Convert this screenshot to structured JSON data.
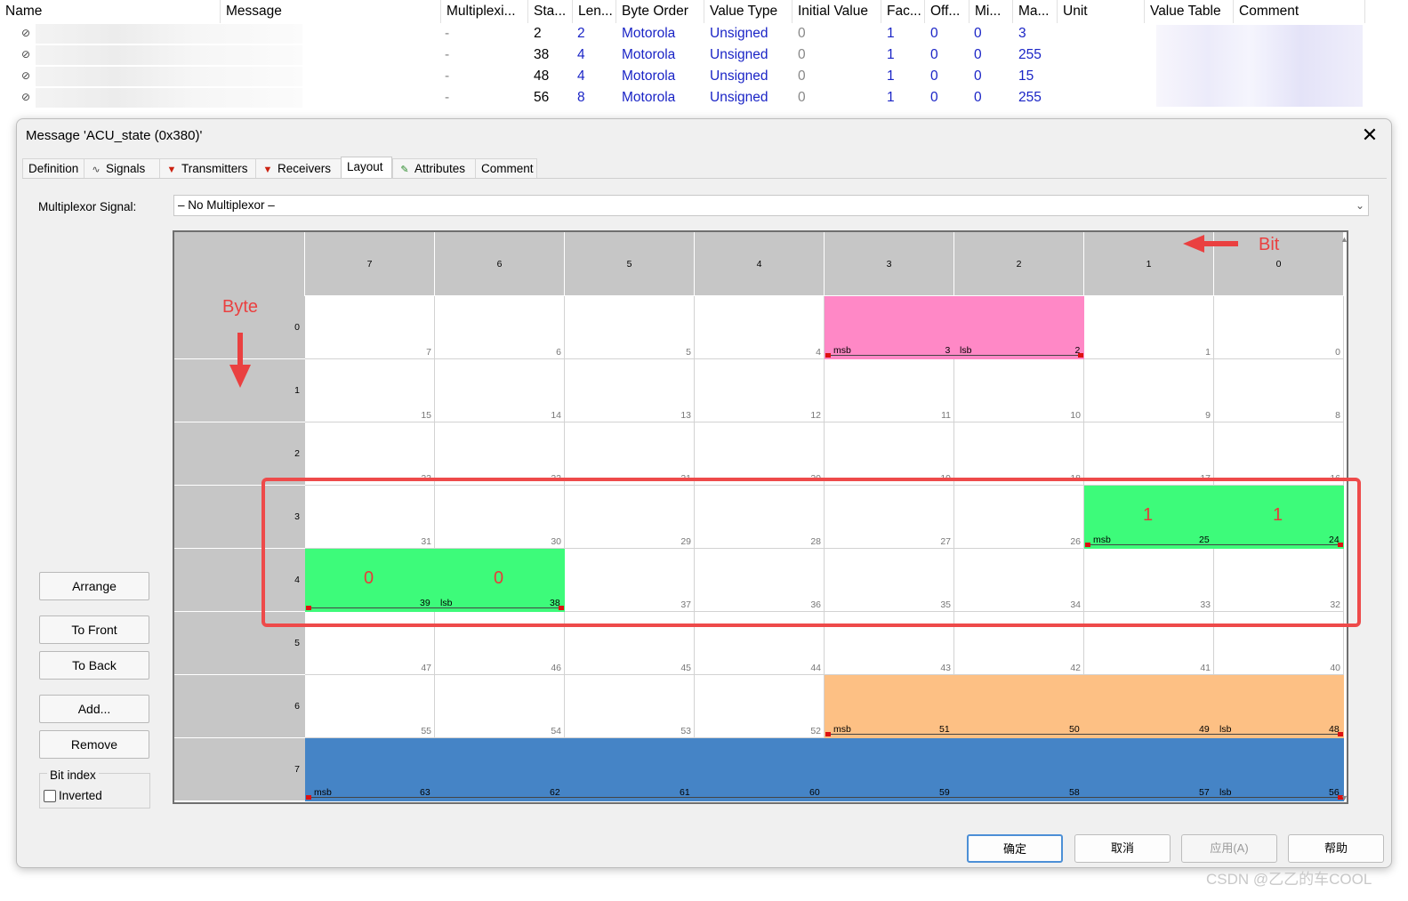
{
  "signal_table": {
    "headers": [
      "Name",
      "Message",
      "Multiplexi...",
      "Sta...",
      "Len...",
      "Byte Order",
      "Value Type",
      "Initial Value",
      "Fac...",
      "Off...",
      "Mi...",
      "Ma...",
      "Unit",
      "Value Table",
      "Comment"
    ],
    "rows": [
      {
        "mux": "-",
        "start": "2",
        "length": "2",
        "byte_order": "Motorola",
        "value_type": "Unsigned",
        "initial": "0",
        "factor": "1",
        "offset": "0",
        "min": "0",
        "max": "3"
      },
      {
        "mux": "-",
        "start": "38",
        "length": "4",
        "byte_order": "Motorola",
        "value_type": "Unsigned",
        "initial": "0",
        "factor": "1",
        "offset": "0",
        "min": "0",
        "max": "255"
      },
      {
        "mux": "-",
        "start": "48",
        "length": "4",
        "byte_order": "Motorola",
        "value_type": "Unsigned",
        "initial": "0",
        "factor": "1",
        "offset": "0",
        "min": "0",
        "max": "15"
      },
      {
        "mux": "-",
        "start": "56",
        "length": "8",
        "byte_order": "Motorola",
        "value_type": "Unsigned",
        "initial": "0",
        "factor": "1",
        "offset": "0",
        "min": "0",
        "max": "255"
      }
    ]
  },
  "dialog": {
    "title": "Message 'ACU_state (0x380)'",
    "close": "✕",
    "tabs": [
      {
        "label": "Definition",
        "icon": ""
      },
      {
        "label": "Signals",
        "icon": "signal-icon"
      },
      {
        "label": "Transmitters",
        "icon": "transmitter-icon"
      },
      {
        "label": "Receivers",
        "icon": "receiver-icon"
      },
      {
        "label": "Layout",
        "icon": "",
        "active": true
      },
      {
        "label": "Attributes",
        "icon": "attributes-icon"
      },
      {
        "label": "Comment",
        "icon": ""
      }
    ],
    "multiplexor_label": "Multiplexor Signal:",
    "multiplexor_value": "– No Multiplexor –",
    "side_buttons": {
      "arrange": "Arrange",
      "to_front": "To Front",
      "to_back": "To Back",
      "add": "Add...",
      "remove": "Remove"
    },
    "bit_index_label": "Bit index",
    "inverted_label": "Inverted",
    "inverted_checked": false,
    "buttons": {
      "ok": "确定",
      "cancel": "取消",
      "apply": "应用(A)",
      "help": "帮助"
    }
  },
  "layout_grid": {
    "bit_headers": [
      "7",
      "6",
      "5",
      "4",
      "3",
      "2",
      "1",
      "0"
    ],
    "byte_headers": [
      "0",
      "1",
      "2",
      "3",
      "4",
      "5",
      "6",
      "7"
    ],
    "segments": [
      {
        "name": "signal-start2",
        "row": 0,
        "col_start": 4,
        "col_end": 5,
        "color": "#ff88c6",
        "labels": {
          "msb": "msb",
          "mid": "3",
          "lsb": "lsb"
        },
        "value": ""
      },
      {
        "name": "signal-start24",
        "row": 3,
        "col_start": 6,
        "col_end": 7,
        "color": "#3dfb7a",
        "labels": {
          "msb": "msb",
          "mid": "25",
          "lsb": ""
        },
        "values": [
          "1",
          "1"
        ]
      },
      {
        "name": "signal-start38",
        "row": 4,
        "col_start": 0,
        "col_end": 1,
        "color": "#3dfb7a",
        "labels": {
          "msb": "",
          "mid": "39",
          "lsb": "lsb"
        },
        "values": [
          "0",
          "0"
        ]
      },
      {
        "name": "signal-start48",
        "row": 6,
        "col_start": 4,
        "col_end": 7,
        "color": "#fdc084",
        "labels": {
          "msb": "msb",
          "mid": "",
          "lsb": "lsb"
        },
        "value": ""
      },
      {
        "name": "signal-start56",
        "row": 7,
        "col_start": 0,
        "col_end": 7,
        "color": "#4584c6",
        "labels": {
          "msb": "msb",
          "mid": "",
          "lsb": "lsb"
        },
        "value": ""
      }
    ]
  },
  "annotations": {
    "bit": "Bit",
    "byte": "Byte"
  },
  "watermark": "CSDN @乙乙的车COOL"
}
